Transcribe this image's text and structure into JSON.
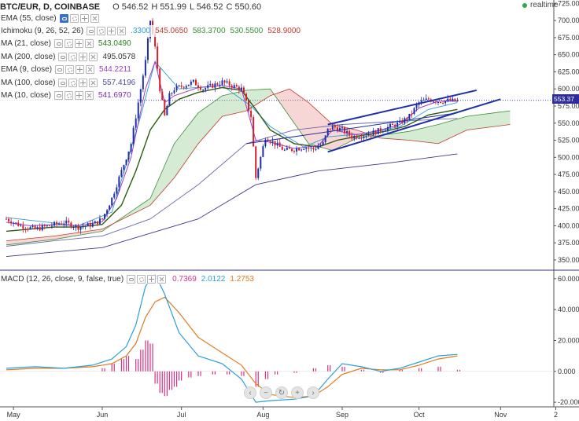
{
  "header": {
    "symbol": "BTC/EUR, D, COINBASE",
    "ohlc": [
      "O 546.52",
      "H 551.99",
      "L 546.52",
      "C 550.60"
    ],
    "realtime": "realtime",
    "accent_green": "#2fa84f"
  },
  "indicators": [
    {
      "label": "EMA (55, close)",
      "value": "",
      "color": "#1a1a8c"
    },
    {
      "label": "Ichimoku (9, 26, 52, 26)",
      "values": [
        ".3300",
        "545.0650",
        "583.3700",
        "530.5500",
        "528.9000"
      ],
      "colors": [
        "#2a9fd8",
        "#c0392b",
        "#3a8f3a",
        "#3a8f3a",
        "#c0392b"
      ]
    },
    {
      "label": "MA (21, close)",
      "value": "543.0490",
      "color": "#2e7d1e"
    },
    {
      "label": "MA (200, close)",
      "value": "495.0578",
      "color": "#333333"
    },
    {
      "label": "EMA (9, close)",
      "value": "544.2211",
      "color": "#9b3fc9"
    },
    {
      "label": "MA (100, close)",
      "value": "557.4196",
      "color": "#4a4a9a"
    },
    {
      "label": "MA (10, close)",
      "value": "541.6970",
      "color": "#7a2bb5"
    }
  ],
  "macd_legend": {
    "label": "MACD (12, 26, close, 9, false, true)",
    "values": [
      "0.7369",
      "2.0122",
      "1.2753"
    ],
    "colors": [
      "#d63384",
      "#2a9fd8",
      "#e07b20"
    ]
  },
  "price_tag": "553.37",
  "nav_icons": [
    "chevron-left-icon",
    "minus-icon",
    "reset-icon",
    "plus-icon",
    "chevron-right-icon"
  ],
  "chart_data": {
    "type": "line",
    "price_axis": {
      "ticks": [
        "725.00",
        "700.00",
        "675.00",
        "650.00",
        "625.00",
        "600.00",
        "575.00",
        "550.00",
        "525.00",
        "500.00",
        "475.00",
        "450.00",
        "425.00",
        "400.00",
        "375.00",
        "350.00"
      ],
      "ylim": [
        335,
        730
      ]
    },
    "macd_axis": {
      "ticks": [
        "60.000",
        "40.000",
        "20.000",
        "0.000",
        "-20.000"
      ],
      "ylim": [
        -23,
        65
      ]
    },
    "time_axis": {
      "ticks": [
        "May",
        "Jun",
        "Jul",
        "Aug",
        "Sep",
        "Oct",
        "Nov",
        "2"
      ]
    },
    "price_series": {
      "name": "BTC/EUR",
      "points": [
        [
          0,
          410
        ],
        [
          6,
          400
        ],
        [
          12,
          395
        ],
        [
          18,
          400
        ],
        [
          24,
          405
        ],
        [
          30,
          398
        ],
        [
          36,
          402
        ],
        [
          40,
          410
        ],
        [
          44,
          440
        ],
        [
          48,
          480
        ],
        [
          52,
          520
        ],
        [
          54,
          560
        ],
        [
          56,
          600
        ],
        [
          58,
          640
        ],
        [
          60,
          700
        ],
        [
          62,
          660
        ],
        [
          64,
          600
        ],
        [
          66,
          560
        ],
        [
          68,
          590
        ],
        [
          70,
          600
        ],
        [
          74,
          605
        ],
        [
          78,
          610
        ],
        [
          82,
          600
        ],
        [
          86,
          605
        ],
        [
          90,
          610
        ],
        [
          94,
          605
        ],
        [
          98,
          600
        ],
        [
          102,
          560
        ],
        [
          104,
          470
        ],
        [
          106,
          500
        ],
        [
          108,
          530
        ],
        [
          112,
          520
        ],
        [
          116,
          510
        ],
        [
          120,
          512
        ],
        [
          124,
          515
        ],
        [
          128,
          512
        ],
        [
          132,
          520
        ],
        [
          134,
          540
        ],
        [
          136,
          545
        ],
        [
          140,
          540
        ],
        [
          144,
          530
        ],
        [
          148,
          532
        ],
        [
          152,
          535
        ],
        [
          156,
          540
        ],
        [
          160,
          545
        ],
        [
          164,
          550
        ],
        [
          168,
          560
        ],
        [
          172,
          580
        ],
        [
          176,
          585
        ],
        [
          180,
          582
        ],
        [
          184,
          583
        ],
        [
          188,
          582
        ]
      ]
    },
    "ema9": [
      [
        0,
        405
      ],
      [
        10,
        400
      ],
      [
        20,
        402
      ],
      [
        30,
        400
      ],
      [
        40,
        406
      ],
      [
        46,
        440
      ],
      [
        52,
        500
      ],
      [
        58,
        600
      ],
      [
        62,
        640
      ],
      [
        66,
        580
      ],
      [
        70,
        590
      ],
      [
        80,
        602
      ],
      [
        90,
        605
      ],
      [
        98,
        600
      ],
      [
        104,
        525
      ],
      [
        110,
        522
      ],
      [
        120,
        513
      ],
      [
        130,
        517
      ],
      [
        136,
        540
      ],
      [
        146,
        533
      ],
      [
        156,
        540
      ],
      [
        164,
        548
      ],
      [
        172,
        572
      ],
      [
        180,
        582
      ],
      [
        188,
        582
      ]
    ],
    "ma21": [
      [
        0,
        392
      ],
      [
        10,
        395
      ],
      [
        20,
        398
      ],
      [
        30,
        398
      ],
      [
        40,
        402
      ],
      [
        48,
        430
      ],
      [
        54,
        480
      ],
      [
        60,
        540
      ],
      [
        66,
        570
      ],
      [
        72,
        585
      ],
      [
        80,
        595
      ],
      [
        90,
        602
      ],
      [
        98,
        598
      ],
      [
        104,
        570
      ],
      [
        110,
        540
      ],
      [
        120,
        520
      ],
      [
        130,
        515
      ],
      [
        138,
        525
      ],
      [
        148,
        532
      ],
      [
        158,
        538
      ],
      [
        166,
        545
      ],
      [
        176,
        562
      ],
      [
        188,
        570
      ]
    ],
    "ma100": [
      [
        0,
        370
      ],
      [
        20,
        378
      ],
      [
        40,
        385
      ],
      [
        60,
        410
      ],
      [
        80,
        460
      ],
      [
        100,
        520
      ],
      [
        120,
        540
      ],
      [
        140,
        548
      ],
      [
        160,
        552
      ],
      [
        188,
        557
      ]
    ],
    "ma200": [
      [
        0,
        355
      ],
      [
        40,
        368
      ],
      [
        80,
        410
      ],
      [
        104,
        460
      ],
      [
        130,
        480
      ],
      [
        160,
        492
      ],
      [
        188,
        505
      ]
    ],
    "kijun": [
      [
        0,
        412
      ],
      [
        30,
        400
      ],
      [
        44,
        420
      ],
      [
        56,
        560
      ],
      [
        62,
        640
      ],
      [
        72,
        600
      ],
      [
        90,
        605
      ],
      [
        102,
        575
      ],
      [
        110,
        545
      ],
      [
        124,
        515
      ],
      [
        134,
        530
      ],
      [
        150,
        535
      ],
      [
        164,
        545
      ],
      [
        176,
        570
      ],
      [
        188,
        580
      ]
    ],
    "cloud": {
      "span_a": [
        [
          0,
          372
        ],
        [
          20,
          380
        ],
        [
          40,
          392
        ],
        [
          60,
          440
        ],
        [
          70,
          520
        ],
        [
          80,
          565
        ],
        [
          90,
          590
        ],
        [
          100,
          598
        ],
        [
          110,
          600
        ],
        [
          118,
          560
        ],
        [
          126,
          520
        ],
        [
          136,
          510
        ],
        [
          146,
          528
        ],
        [
          156,
          532
        ],
        [
          168,
          538
        ],
        [
          180,
          548
        ],
        [
          192,
          560
        ],
        [
          210,
          568
        ]
      ],
      "span_b": [
        [
          0,
          378
        ],
        [
          20,
          385
        ],
        [
          40,
          395
        ],
        [
          60,
          430
        ],
        [
          70,
          470
        ],
        [
          80,
          520
        ],
        [
          90,
          560
        ],
        [
          100,
          568
        ],
        [
          110,
          590
        ],
        [
          118,
          600
        ],
        [
          126,
          580
        ],
        [
          136,
          548
        ],
        [
          146,
          540
        ],
        [
          156,
          528
        ],
        [
          168,
          525
        ],
        [
          180,
          520
        ],
        [
          192,
          540
        ],
        [
          210,
          548
        ]
      ]
    },
    "trendlines": [
      {
        "name": "upper",
        "from": [
          134,
          548
        ],
        "to": [
          196,
          598
        ]
      },
      {
        "name": "lower",
        "from": [
          134,
          508
        ],
        "to": [
          206,
          585
        ]
      },
      {
        "name": "inner",
        "from": [
          100,
          520
        ],
        "to": [
          188,
          565
        ]
      }
    ],
    "macd": {
      "macd_line": [
        [
          0,
          2
        ],
        [
          12,
          3
        ],
        [
          24,
          2
        ],
        [
          36,
          4
        ],
        [
          44,
          8
        ],
        [
          50,
          16
        ],
        [
          54,
          30
        ],
        [
          58,
          55
        ],
        [
          62,
          63
        ],
        [
          66,
          50
        ],
        [
          72,
          25
        ],
        [
          80,
          10
        ],
        [
          90,
          5
        ],
        [
          98,
          -5
        ],
        [
          104,
          -20
        ],
        [
          110,
          -19
        ],
        [
          120,
          -18
        ],
        [
          128,
          -16
        ],
        [
          134,
          -5
        ],
        [
          140,
          5
        ],
        [
          148,
          3
        ],
        [
          156,
          0
        ],
        [
          164,
          2
        ],
        [
          172,
          6
        ],
        [
          180,
          10
        ],
        [
          188,
          11
        ]
      ],
      "signal_line": [
        [
          0,
          1
        ],
        [
          12,
          2
        ],
        [
          24,
          2
        ],
        [
          36,
          3
        ],
        [
          44,
          5
        ],
        [
          50,
          10
        ],
        [
          54,
          18
        ],
        [
          58,
          35
        ],
        [
          62,
          45
        ],
        [
          66,
          48
        ],
        [
          72,
          38
        ],
        [
          80,
          22
        ],
        [
          90,
          12
        ],
        [
          98,
          4
        ],
        [
          104,
          -8
        ],
        [
          110,
          -15
        ],
        [
          120,
          -17
        ],
        [
          128,
          -16
        ],
        [
          134,
          -10
        ],
        [
          140,
          -2
        ],
        [
          148,
          2
        ],
        [
          156,
          1
        ],
        [
          164,
          1
        ],
        [
          172,
          4
        ],
        [
          180,
          8
        ],
        [
          188,
          10
        ]
      ],
      "histogram": [
        [
          40,
          2
        ],
        [
          44,
          5
        ],
        [
          48,
          8
        ],
        [
          50,
          10
        ],
        [
          54,
          8
        ],
        [
          56,
          14
        ],
        [
          58,
          20
        ],
        [
          60,
          18
        ],
        [
          62,
          -8
        ],
        [
          64,
          -14
        ],
        [
          66,
          -16
        ],
        [
          68,
          -12
        ],
        [
          70,
          -10
        ],
        [
          72,
          -6
        ],
        [
          76,
          -4
        ],
        [
          80,
          -3
        ],
        [
          86,
          -2
        ],
        [
          92,
          -2
        ],
        [
          98,
          -3
        ],
        [
          104,
          -10
        ],
        [
          108,
          -5
        ],
        [
          112,
          -2
        ],
        [
          120,
          -1
        ],
        [
          128,
          2
        ],
        [
          134,
          4
        ],
        [
          140,
          3
        ],
        [
          148,
          1
        ],
        [
          156,
          -1
        ],
        [
          164,
          1
        ],
        [
          172,
          2
        ],
        [
          180,
          3
        ],
        [
          188,
          1
        ]
      ]
    }
  }
}
